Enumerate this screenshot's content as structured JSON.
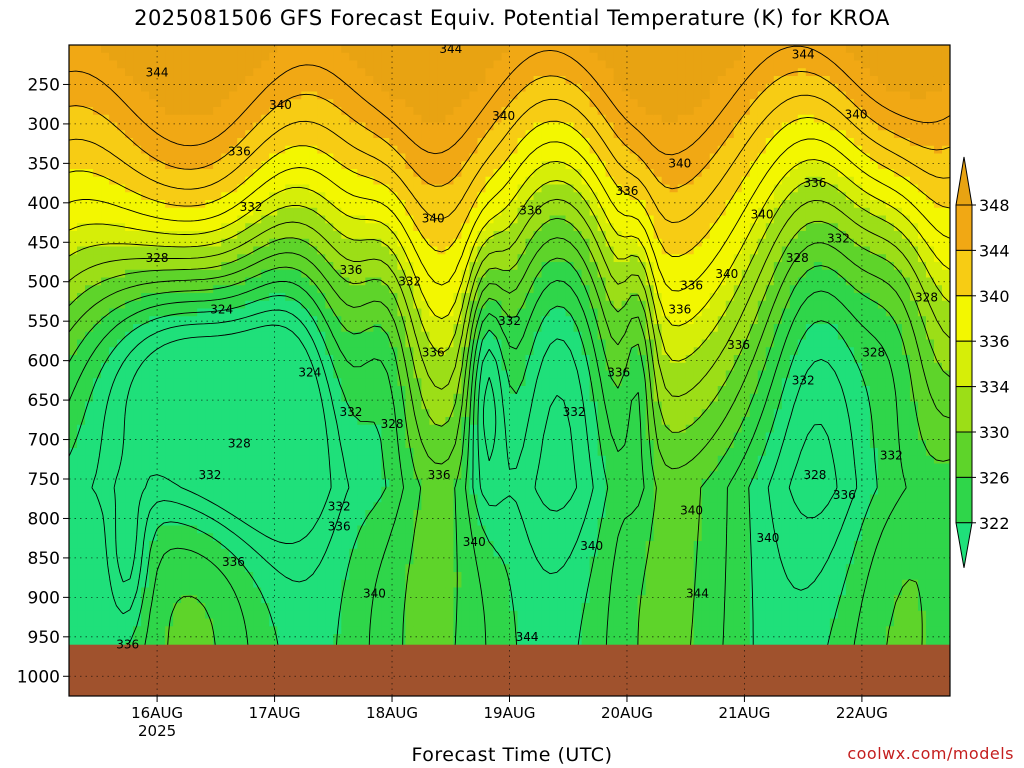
{
  "title": "2025081506 GFS Forecast Equiv. Potential Temperature (K) for KROA",
  "credit": "coolwx.com/models",
  "chart_data": {
    "type": "heatmap",
    "title": "2025081506 GFS Forecast Equiv. Potential Temperature (K) for KROA",
    "xlabel": "Forecast Time (UTC)",
    "ylabel": "",
    "x_ticks": [
      "16AUG",
      "17AUG",
      "18AUG",
      "19AUG",
      "20AUG",
      "21AUG",
      "22AUG"
    ],
    "x_year": "2025",
    "x_range_days": [
      15.25,
      22.75
    ],
    "y_axis": "pressure (hPa), reversed",
    "y_ticks": [
      250,
      300,
      350,
      400,
      450,
      500,
      550,
      600,
      650,
      700,
      750,
      800,
      850,
      900,
      950,
      1000
    ],
    "y_range": [
      200,
      1025
    ],
    "grid": true,
    "colorbar": {
      "levels": [
        322,
        326,
        330,
        334,
        336,
        340,
        344,
        348
      ],
      "colors": [
        "#1fe07a",
        "#2fd64a",
        "#5ed42a",
        "#9cde17",
        "#d6ee08",
        "#f3f700",
        "#f7cc14",
        "#f1a814",
        "#e8a312"
      ],
      "placement": "right"
    },
    "ground_color": "#a0522d",
    "ground_top_hpa": 960,
    "contour_labels": [
      {
        "value": 344,
        "t": 16.0,
        "p": 235
      },
      {
        "value": 344,
        "t": 18.5,
        "p": 205
      },
      {
        "value": 344,
        "t": 21.5,
        "p": 212
      },
      {
        "value": 340,
        "t": 17.05,
        "p": 276
      },
      {
        "value": 340,
        "t": 18.95,
        "p": 290
      },
      {
        "value": 340,
        "t": 21.95,
        "p": 288
      },
      {
        "value": 340,
        "t": 20.45,
        "p": 350
      },
      {
        "value": 340,
        "t": 21.15,
        "p": 415
      },
      {
        "value": 340,
        "t": 18.35,
        "p": 420
      },
      {
        "value": 340,
        "t": 20.85,
        "p": 490
      },
      {
        "value": 336,
        "t": 16.7,
        "p": 335
      },
      {
        "value": 336,
        "t": 19.18,
        "p": 410
      },
      {
        "value": 336,
        "t": 20.0,
        "p": 385
      },
      {
        "value": 336,
        "t": 21.6,
        "p": 375
      },
      {
        "value": 336,
        "t": 17.65,
        "p": 485
      },
      {
        "value": 336,
        "t": 20.55,
        "p": 505
      },
      {
        "value": 336,
        "t": 20.45,
        "p": 535
      },
      {
        "value": 336,
        "t": 20.95,
        "p": 580
      },
      {
        "value": 336,
        "t": 18.35,
        "p": 590
      },
      {
        "value": 336,
        "t": 18.4,
        "p": 745
      },
      {
        "value": 336,
        "t": 17.55,
        "p": 810
      },
      {
        "value": 336,
        "t": 16.65,
        "p": 855
      },
      {
        "value": 336,
        "t": 15.75,
        "p": 960
      },
      {
        "value": 336,
        "t": 21.85,
        "p": 770
      },
      {
        "value": 336,
        "t": 19.93,
        "p": 615
      },
      {
        "value": 332,
        "t": 16.8,
        "p": 405
      },
      {
        "value": 332,
        "t": 18.15,
        "p": 500
      },
      {
        "value": 332,
        "t": 19.0,
        "p": 550
      },
      {
        "value": 332,
        "t": 21.8,
        "p": 445
      },
      {
        "value": 332,
        "t": 19.55,
        "p": 665
      },
      {
        "value": 332,
        "t": 17.65,
        "p": 665
      },
      {
        "value": 332,
        "t": 21.5,
        "p": 625
      },
      {
        "value": 332,
        "t": 16.45,
        "p": 745
      },
      {
        "value": 332,
        "t": 17.55,
        "p": 785
      },
      {
        "value": 332,
        "t": 22.25,
        "p": 720
      },
      {
        "value": 328,
        "t": 16.0,
        "p": 470
      },
      {
        "value": 328,
        "t": 21.45,
        "p": 470
      },
      {
        "value": 328,
        "t": 22.55,
        "p": 520
      },
      {
        "value": 328,
        "t": 22.1,
        "p": 590
      },
      {
        "value": 328,
        "t": 16.7,
        "p": 705
      },
      {
        "value": 328,
        "t": 18.0,
        "p": 680
      },
      {
        "value": 328,
        "t": 21.6,
        "p": 745
      },
      {
        "value": 324,
        "t": 16.55,
        "p": 535
      },
      {
        "value": 324,
        "t": 17.3,
        "p": 615
      },
      {
        "value": 340,
        "t": 17.85,
        "p": 895
      },
      {
        "value": 340,
        "t": 18.7,
        "p": 830
      },
      {
        "value": 340,
        "t": 19.7,
        "p": 835
      },
      {
        "value": 340,
        "t": 20.55,
        "p": 790
      },
      {
        "value": 340,
        "t": 21.2,
        "p": 825
      },
      {
        "value": 344,
        "t": 19.15,
        "p": 950
      },
      {
        "value": 344,
        "t": 20.6,
        "p": 895
      }
    ]
  }
}
